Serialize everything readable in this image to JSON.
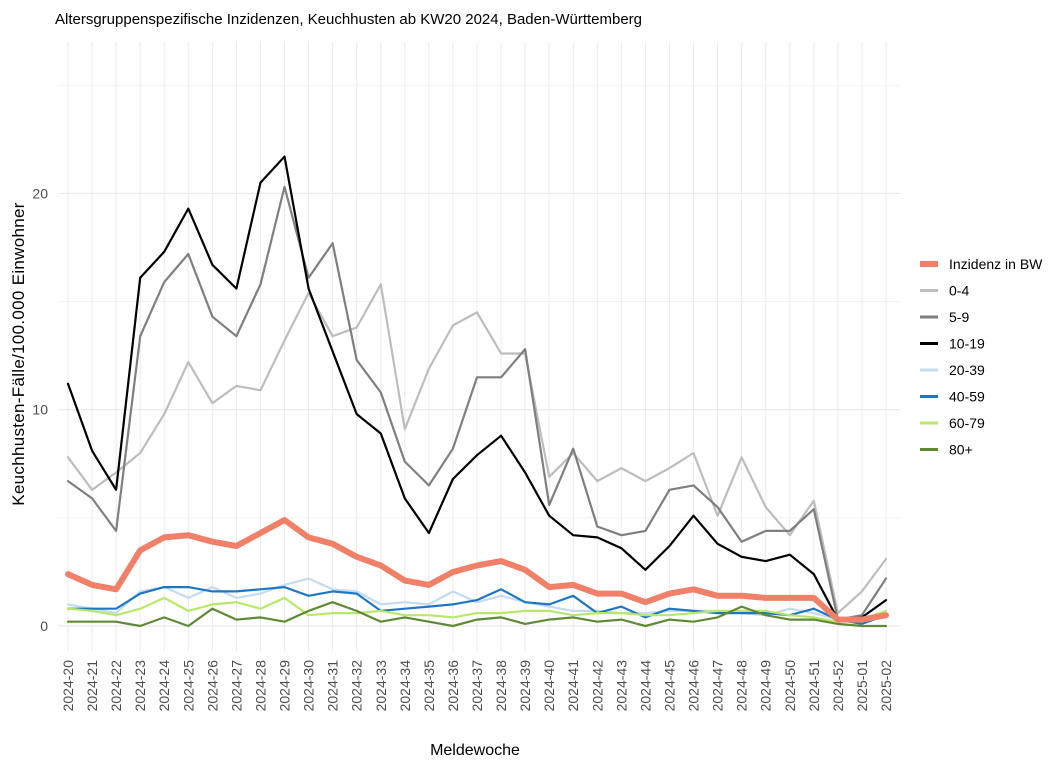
{
  "chart_data": {
    "type": "line",
    "title": "Altersgruppenspezifische Inzidenzen, Keuchhusten ab KW20 2024, Baden-Württemberg",
    "xlabel": "Meldewoche",
    "ylabel": "Keuchhusten-Fälle/100.000 Einwohner",
    "ylim": [
      -1.2,
      27
    ],
    "yticks": [
      0,
      10,
      20
    ],
    "grid": true,
    "legend_position": "right",
    "categories": [
      "2024-20",
      "2024-21",
      "2024-22",
      "2024-23",
      "2024-24",
      "2024-25",
      "2024-26",
      "2024-27",
      "2024-28",
      "2024-29",
      "2024-30",
      "2024-31",
      "2024-32",
      "2024-33",
      "2024-34",
      "2024-35",
      "2024-36",
      "2024-37",
      "2024-38",
      "2024-39",
      "2024-40",
      "2024-41",
      "2024-42",
      "2024-43",
      "2024-44",
      "2024-45",
      "2024-46",
      "2024-47",
      "2024-48",
      "2024-49",
      "2024-50",
      "2024-51",
      "2024-52",
      "2025-01",
      "2025-02"
    ],
    "series": [
      {
        "name": "0-4",
        "color": "#bdbdbd",
        "width": 2.2,
        "values": [
          7.8,
          6.3,
          7.1,
          8.0,
          9.8,
          12.2,
          10.3,
          11.1,
          10.9,
          13.2,
          15.4,
          13.4,
          13.8,
          15.8,
          9.1,
          11.9,
          13.9,
          14.5,
          12.6,
          12.6,
          6.9,
          8.0,
          6.7,
          7.3,
          6.7,
          7.3,
          8.0,
          5.1,
          7.8,
          5.5,
          4.2,
          5.8,
          0.6,
          1.6,
          3.1
        ]
      },
      {
        "name": "5-9",
        "color": "#7f7f7f",
        "width": 2.2,
        "values": [
          6.7,
          5.9,
          4.4,
          13.4,
          15.9,
          17.2,
          14.3,
          13.4,
          15.8,
          20.3,
          16.1,
          17.7,
          12.3,
          10.8,
          7.6,
          6.5,
          8.2,
          11.5,
          11.5,
          12.8,
          5.6,
          8.2,
          4.6,
          4.2,
          4.4,
          6.3,
          6.5,
          5.5,
          3.9,
          4.4,
          4.4,
          5.4,
          0.3,
          0.5,
          2.2
        ]
      },
      {
        "name": "10-19",
        "color": "#000000",
        "width": 2.2,
        "values": [
          11.2,
          8.1,
          6.3,
          16.1,
          17.3,
          19.3,
          16.7,
          15.6,
          20.5,
          21.7,
          15.6,
          12.7,
          9.8,
          8.9,
          5.9,
          4.3,
          6.8,
          7.9,
          8.8,
          7.1,
          5.1,
          4.2,
          4.1,
          3.6,
          2.6,
          3.7,
          5.1,
          3.8,
          3.2,
          3.0,
          3.3,
          2.4,
          0.3,
          0.4,
          1.2
        ]
      },
      {
        "name": "20-39",
        "color": "#c6dbef",
        "width": 2.2,
        "values": [
          1.0,
          0.8,
          0.6,
          1.6,
          1.8,
          1.3,
          1.8,
          1.3,
          1.5,
          1.9,
          2.2,
          1.7,
          1.6,
          1.0,
          1.1,
          1.0,
          1.6,
          1.1,
          1.4,
          1.1,
          0.9,
          0.7,
          0.7,
          0.6,
          0.6,
          0.7,
          0.7,
          0.7,
          0.6,
          0.5,
          0.8,
          0.6,
          0.3,
          0.2,
          0.5
        ]
      },
      {
        "name": "40-59",
        "color": "#1f77c4",
        "width": 2.2,
        "values": [
          0.8,
          0.8,
          0.8,
          1.5,
          1.8,
          1.8,
          1.6,
          1.6,
          1.7,
          1.8,
          1.4,
          1.6,
          1.5,
          0.7,
          0.8,
          0.9,
          1.0,
          1.2,
          1.7,
          1.1,
          1.0,
          1.4,
          0.6,
          0.9,
          0.4,
          0.8,
          0.7,
          0.6,
          0.6,
          0.6,
          0.5,
          0.8,
          0.3,
          0.1,
          0.5
        ]
      },
      {
        "name": "60-79",
        "color": "#b8e86b",
        "width": 2.2,
        "values": [
          0.8,
          0.7,
          0.5,
          0.8,
          1.3,
          0.7,
          1.0,
          1.1,
          0.8,
          1.3,
          0.5,
          0.6,
          0.6,
          0.7,
          0.5,
          0.5,
          0.4,
          0.6,
          0.6,
          0.7,
          0.7,
          0.5,
          0.6,
          0.6,
          0.5,
          0.5,
          0.6,
          0.7,
          0.7,
          0.7,
          0.5,
          0.4,
          0.2,
          0.3,
          0.7
        ]
      },
      {
        "name": "80+",
        "color": "#5f8a35",
        "width": 2.2,
        "values": [
          0.2,
          0.2,
          0.2,
          0.0,
          0.4,
          0.0,
          0.8,
          0.3,
          0.4,
          0.2,
          0.7,
          1.1,
          0.7,
          0.2,
          0.4,
          0.2,
          0.0,
          0.3,
          0.4,
          0.1,
          0.3,
          0.4,
          0.2,
          0.3,
          0.0,
          0.3,
          0.2,
          0.4,
          0.9,
          0.5,
          0.3,
          0.3,
          0.1,
          0.0,
          0.0
        ]
      },
      {
        "name": "Inzidenz in BW",
        "color": "#f08068",
        "width": 6,
        "values": [
          2.4,
          1.9,
          1.7,
          3.5,
          4.1,
          4.2,
          3.9,
          3.7,
          4.3,
          4.9,
          4.1,
          3.8,
          3.2,
          2.8,
          2.1,
          1.9,
          2.5,
          2.8,
          3.0,
          2.6,
          1.8,
          1.9,
          1.5,
          1.5,
          1.1,
          1.5,
          1.7,
          1.4,
          1.4,
          1.3,
          1.3,
          1.3,
          0.3,
          0.3,
          0.5
        ]
      }
    ],
    "legend": [
      {
        "name": "Inzidenz in BW",
        "color": "#f08068",
        "thick": true
      },
      {
        "name": "0-4",
        "color": "#bdbdbd"
      },
      {
        "name": "5-9",
        "color": "#7f7f7f"
      },
      {
        "name": "10-19",
        "color": "#000000"
      },
      {
        "name": "20-39",
        "color": "#c6dbef"
      },
      {
        "name": "40-59",
        "color": "#1f77c4"
      },
      {
        "name": "60-79",
        "color": "#b8e86b"
      },
      {
        "name": "80+",
        "color": "#5f8a35"
      }
    ]
  }
}
